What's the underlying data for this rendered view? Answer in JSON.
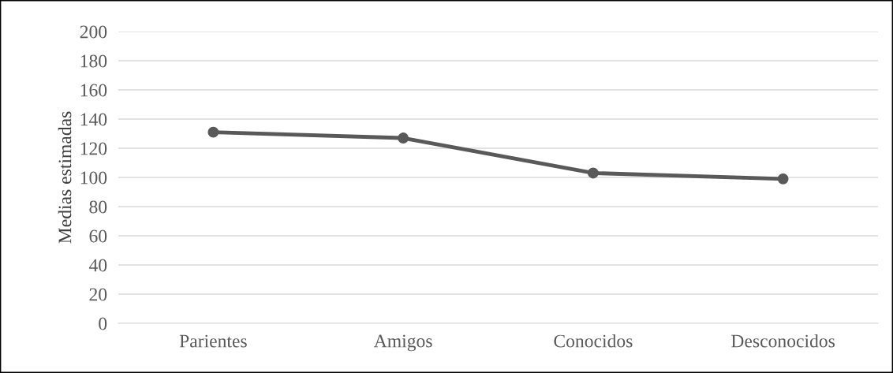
{
  "chart_data": {
    "type": "line",
    "ylabel": "Medias estimadas",
    "categories": [
      "Parientes",
      "Amigos",
      "Conocidos",
      "Desconocidos"
    ],
    "series": [
      {
        "color": "#595959",
        "values": [
          131,
          127,
          103,
          99
        ]
      }
    ],
    "ylim": [
      0,
      200
    ],
    "yticks": [
      0,
      20,
      40,
      60,
      80,
      100,
      120,
      140,
      160,
      180,
      200
    ],
    "grid": "y",
    "legend": false,
    "marker": "circle",
    "line_style": "solid"
  }
}
